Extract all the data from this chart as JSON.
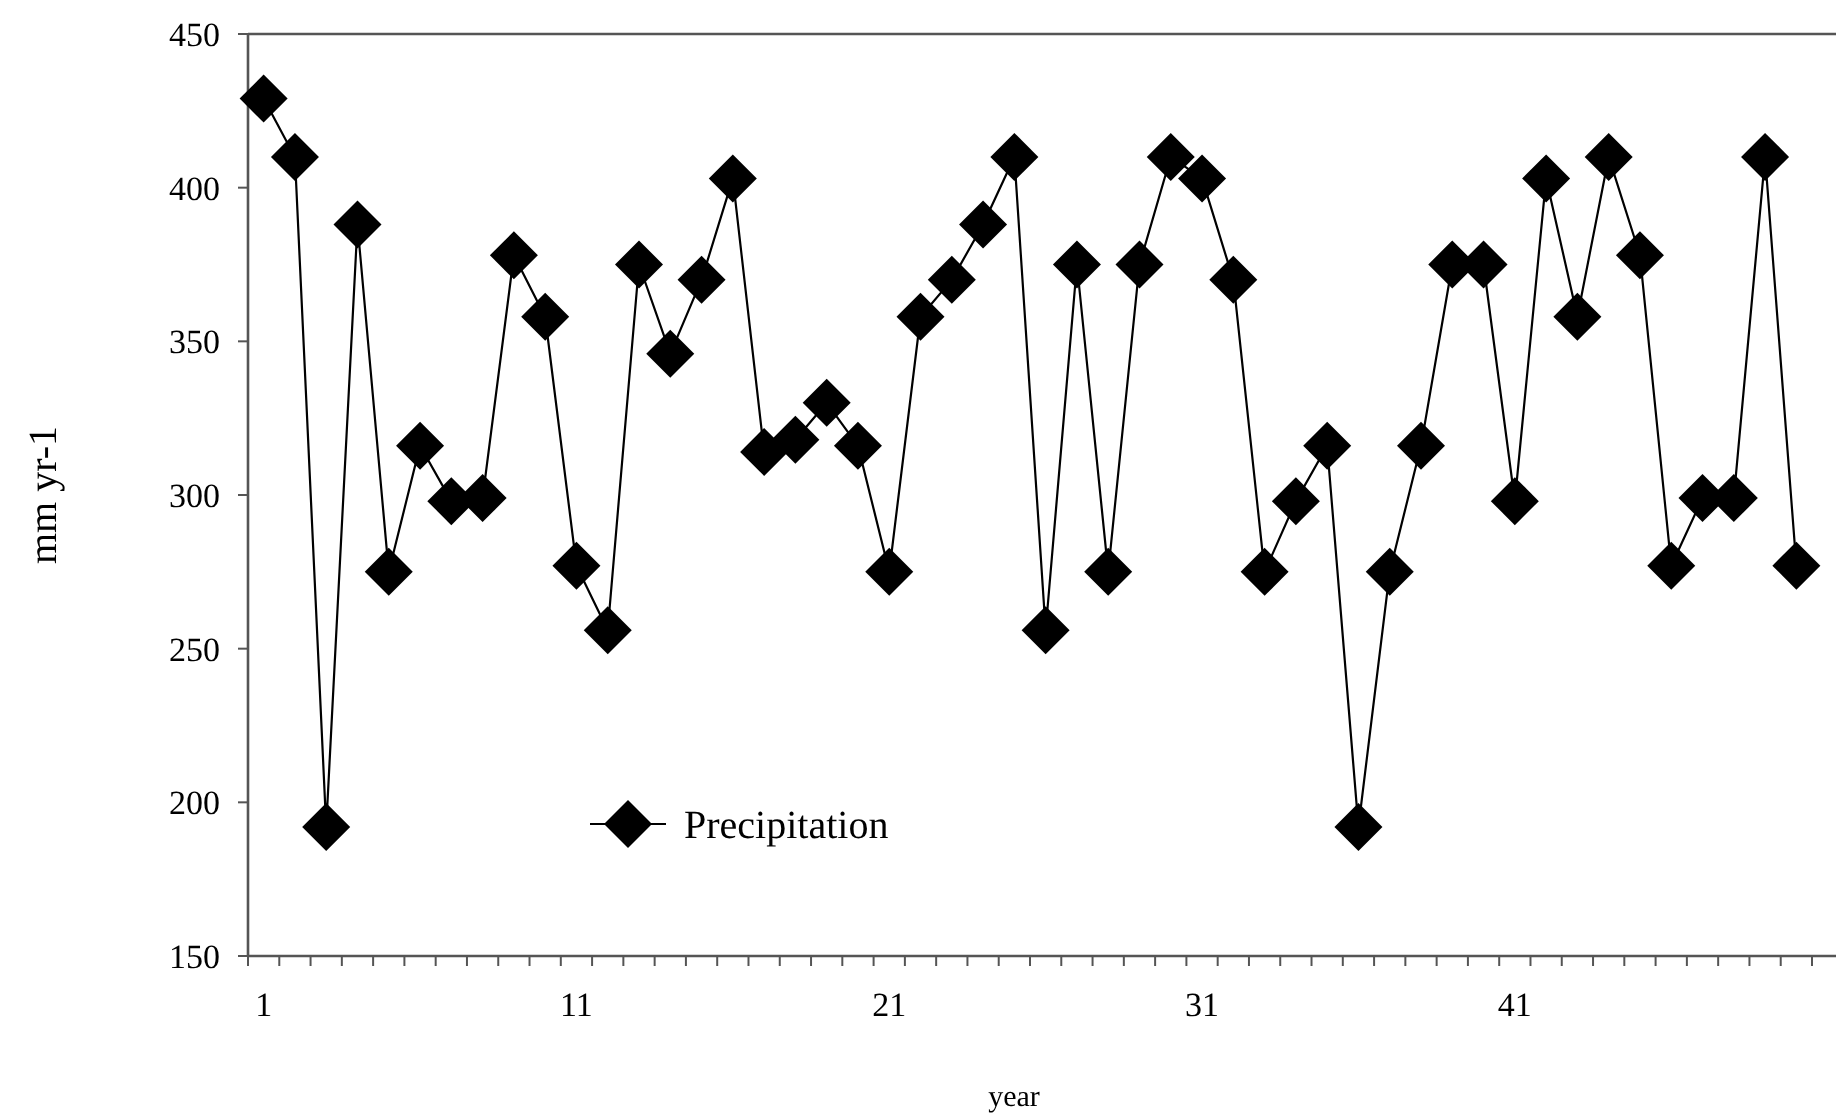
{
  "chart_data": {
    "type": "line",
    "xlabel": "year",
    "ylabel": "mm yr-1",
    "categories": [
      "1",
      null,
      null,
      null,
      null,
      null,
      null,
      null,
      null,
      null,
      "11",
      null,
      null,
      null,
      null,
      null,
      null,
      null,
      null,
      null,
      "21",
      null,
      null,
      null,
      null,
      null,
      null,
      null,
      null,
      null,
      "31",
      null,
      null,
      null,
      null,
      null,
      null,
      null,
      null,
      null,
      "41",
      null,
      null,
      null,
      null,
      null,
      null,
      null,
      null,
      null
    ],
    "series": [
      {
        "name": "Precipitation",
        "color": "#000000",
        "values": [
          429,
          410,
          192,
          388,
          275,
          316,
          298,
          299,
          378,
          358,
          277,
          256,
          375,
          346,
          370,
          403,
          314,
          318,
          330,
          316,
          275,
          358,
          370,
          388,
          410,
          256,
          375,
          275,
          375,
          410,
          403,
          370,
          275,
          298,
          316,
          192,
          275,
          316,
          375,
          375,
          298,
          403,
          358,
          410,
          378,
          277,
          299,
          299,
          410,
          277
        ]
      }
    ],
    "ylim": [
      150,
      450
    ],
    "yticks": [
      150,
      200,
      250,
      300,
      350,
      400,
      450
    ],
    "grid": false,
    "legend": "bottom left",
    "marker": "diamond",
    "line_style": "solid"
  }
}
